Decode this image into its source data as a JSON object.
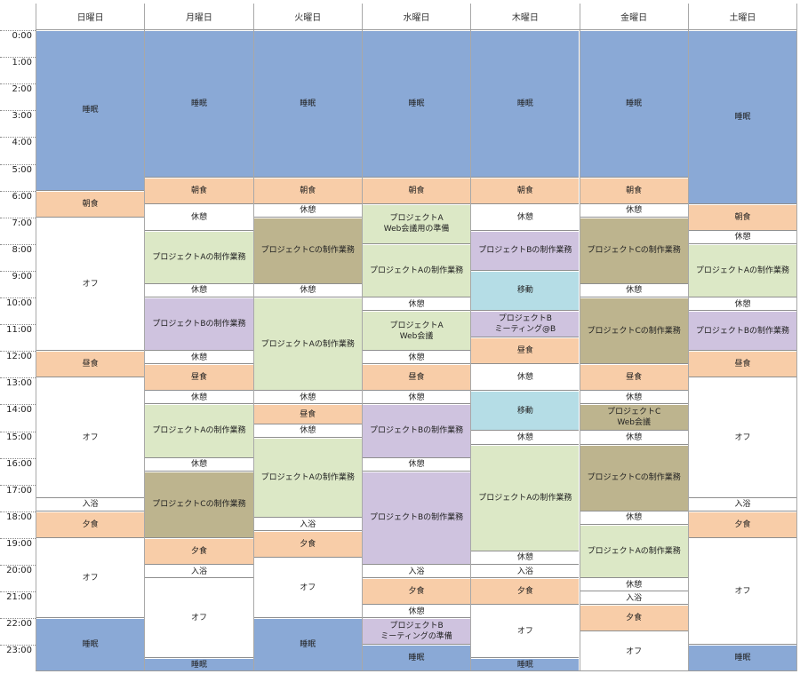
{
  "colors": {
    "sleep": "#8aa9d6",
    "meal": "#f8cda8",
    "free": "#ffffff",
    "project_a": "#dce8c6",
    "project_b": "#cfc3df",
    "project_c": "#bdb48e",
    "travel": "#b5dde6"
  },
  "hours": [
    "0:00",
    "1:00",
    "2:00",
    "3:00",
    "4:00",
    "5:00",
    "6:00",
    "7:00",
    "8:00",
    "9:00",
    "10:00",
    "11:00",
    "12:00",
    "13:00",
    "14:00",
    "15:00",
    "16:00",
    "17:00",
    "18:00",
    "19:00",
    "20:00",
    "21:00",
    "22:00",
    "23:00"
  ],
  "days": [
    {
      "name": "日曜日",
      "blocks": [
        {
          "start": 0,
          "end": 6,
          "label": "睡眠",
          "kind": "sleep"
        },
        {
          "start": 6,
          "end": 7,
          "label": "朝食",
          "kind": "meal"
        },
        {
          "start": 7,
          "end": 12,
          "label": "オフ",
          "kind": "free"
        },
        {
          "start": 12,
          "end": 13,
          "label": "昼食",
          "kind": "meal"
        },
        {
          "start": 13,
          "end": 17.5,
          "label": "オフ",
          "kind": "free"
        },
        {
          "start": 17.5,
          "end": 18,
          "label": "入浴",
          "kind": "free"
        },
        {
          "start": 18,
          "end": 19,
          "label": "夕食",
          "kind": "meal"
        },
        {
          "start": 19,
          "end": 22,
          "label": "オフ",
          "kind": "free"
        },
        {
          "start": 22,
          "end": 24,
          "label": "睡眠",
          "kind": "sleep"
        }
      ]
    },
    {
      "name": "月曜日",
      "blocks": [
        {
          "start": 0,
          "end": 5.5,
          "label": "睡眠",
          "kind": "sleep"
        },
        {
          "start": 5.5,
          "end": 6.5,
          "label": "朝食",
          "kind": "meal"
        },
        {
          "start": 6.5,
          "end": 7.5,
          "label": "休憩",
          "kind": "free"
        },
        {
          "start": 7.5,
          "end": 9.5,
          "label": "プロジェクトAの制作業務",
          "kind": "project_a"
        },
        {
          "start": 9.5,
          "end": 10,
          "label": "休憩",
          "kind": "free"
        },
        {
          "start": 10,
          "end": 12,
          "label": "プロジェクトBの制作業務",
          "kind": "project_b"
        },
        {
          "start": 12,
          "end": 12.5,
          "label": "休憩",
          "kind": "free"
        },
        {
          "start": 12.5,
          "end": 13.5,
          "label": "昼食",
          "kind": "meal"
        },
        {
          "start": 13.5,
          "end": 14,
          "label": "休憩",
          "kind": "free"
        },
        {
          "start": 14,
          "end": 16,
          "label": "プロジェクトAの制作業務",
          "kind": "project_a"
        },
        {
          "start": 16,
          "end": 16.5,
          "label": "休憩",
          "kind": "free"
        },
        {
          "start": 16.5,
          "end": 19,
          "label": "プロジェクトCの制作業務",
          "kind": "project_c"
        },
        {
          "start": 19,
          "end": 20,
          "label": "夕食",
          "kind": "meal"
        },
        {
          "start": 20,
          "end": 20.5,
          "label": "入浴",
          "kind": "free"
        },
        {
          "start": 20.5,
          "end": 23.5,
          "label": "オフ",
          "kind": "free"
        },
        {
          "start": 23.5,
          "end": 24,
          "label": "睡眠",
          "kind": "sleep"
        }
      ]
    },
    {
      "name": "火曜日",
      "blocks": [
        {
          "start": 0,
          "end": 5.5,
          "label": "睡眠",
          "kind": "sleep"
        },
        {
          "start": 5.5,
          "end": 6.5,
          "label": "朝食",
          "kind": "meal"
        },
        {
          "start": 6.5,
          "end": 7,
          "label": "休憩",
          "kind": "free"
        },
        {
          "start": 7,
          "end": 9.5,
          "label": "プロジェクトCの制作業務",
          "kind": "project_c"
        },
        {
          "start": 9.5,
          "end": 10,
          "label": "休憩",
          "kind": "free"
        },
        {
          "start": 10,
          "end": 13.5,
          "label": "プロジェクトAの制作業務",
          "kind": "project_a"
        },
        {
          "start": 13.5,
          "end": 14,
          "label": "休憩",
          "kind": "free"
        },
        {
          "start": 14,
          "end": 14.75,
          "label": "昼食",
          "kind": "meal"
        },
        {
          "start": 14.75,
          "end": 15.25,
          "label": "休憩",
          "kind": "free"
        },
        {
          "start": 15.25,
          "end": 18.25,
          "label": "プロジェクトAの制作業務",
          "kind": "project_a"
        },
        {
          "start": 18.25,
          "end": 18.75,
          "label": "入浴",
          "kind": "free"
        },
        {
          "start": 18.75,
          "end": 19.75,
          "label": "夕食",
          "kind": "meal"
        },
        {
          "start": 19.75,
          "end": 22,
          "label": "オフ",
          "kind": "free"
        },
        {
          "start": 22,
          "end": 24,
          "label": "睡眠",
          "kind": "sleep"
        }
      ]
    },
    {
      "name": "水曜日",
      "blocks": [
        {
          "start": 0,
          "end": 5.5,
          "label": "睡眠",
          "kind": "sleep"
        },
        {
          "start": 5.5,
          "end": 6.5,
          "label": "朝食",
          "kind": "meal"
        },
        {
          "start": 6.5,
          "end": 8,
          "label": "プロジェクトA\nWeb会議用の準備",
          "kind": "project_a"
        },
        {
          "start": 8,
          "end": 10,
          "label": "プロジェクトAの制作業務",
          "kind": "project_a"
        },
        {
          "start": 10,
          "end": 10.5,
          "label": "休憩",
          "kind": "free"
        },
        {
          "start": 10.5,
          "end": 12,
          "label": "プロジェクトA\nWeb会議",
          "kind": "project_a"
        },
        {
          "start": 12,
          "end": 12.5,
          "label": "休憩",
          "kind": "free"
        },
        {
          "start": 12.5,
          "end": 13.5,
          "label": "昼食",
          "kind": "meal"
        },
        {
          "start": 13.5,
          "end": 14,
          "label": "休憩",
          "kind": "free"
        },
        {
          "start": 14,
          "end": 16,
          "label": "プロジェクトBの制作業務",
          "kind": "project_b"
        },
        {
          "start": 16,
          "end": 16.5,
          "label": "休憩",
          "kind": "free"
        },
        {
          "start": 16.5,
          "end": 20,
          "label": "プロジェクトBの制作業務",
          "kind": "project_b"
        },
        {
          "start": 20,
          "end": 20.5,
          "label": "入浴",
          "kind": "free"
        },
        {
          "start": 20.5,
          "end": 21.5,
          "label": "夕食",
          "kind": "meal"
        },
        {
          "start": 21.5,
          "end": 22,
          "label": "休憩",
          "kind": "free"
        },
        {
          "start": 22,
          "end": 23,
          "label": "プロジェクトB\nミーティングの準備",
          "kind": "project_b"
        },
        {
          "start": 23,
          "end": 24,
          "label": "睡眠",
          "kind": "sleep"
        }
      ]
    },
    {
      "name": "木曜日",
      "blocks": [
        {
          "start": 0,
          "end": 5.5,
          "label": "睡眠",
          "kind": "sleep"
        },
        {
          "start": 5.5,
          "end": 6.5,
          "label": "朝食",
          "kind": "meal"
        },
        {
          "start": 6.5,
          "end": 7.5,
          "label": "休憩",
          "kind": "free"
        },
        {
          "start": 7.5,
          "end": 9,
          "label": "プロジェクトBの制作業務",
          "kind": "project_b"
        },
        {
          "start": 9,
          "end": 10.5,
          "label": "移動",
          "kind": "travel"
        },
        {
          "start": 10.5,
          "end": 11.5,
          "label": "プロジェクトB\nミーティング@B",
          "kind": "project_b"
        },
        {
          "start": 11.5,
          "end": 12.5,
          "label": "昼食",
          "kind": "meal"
        },
        {
          "start": 12.5,
          "end": 13.5,
          "label": "休憩",
          "kind": "free"
        },
        {
          "start": 13.5,
          "end": 15,
          "label": "移動",
          "kind": "travel"
        },
        {
          "start": 15,
          "end": 15.5,
          "label": "休憩",
          "kind": "free"
        },
        {
          "start": 15.5,
          "end": 19.5,
          "label": "プロジェクトAの制作業務",
          "kind": "project_a"
        },
        {
          "start": 19.5,
          "end": 20,
          "label": "休憩",
          "kind": "free"
        },
        {
          "start": 20,
          "end": 20.5,
          "label": "入浴",
          "kind": "free"
        },
        {
          "start": 20.5,
          "end": 21.5,
          "label": "夕食",
          "kind": "meal"
        },
        {
          "start": 21.5,
          "end": 23.5,
          "label": "オフ",
          "kind": "free"
        },
        {
          "start": 23.5,
          "end": 24,
          "label": "睡眠",
          "kind": "sleep"
        }
      ]
    },
    {
      "name": "金曜日",
      "blocks": [
        {
          "start": 0,
          "end": 5.5,
          "label": "睡眠",
          "kind": "sleep"
        },
        {
          "start": 5.5,
          "end": 6.5,
          "label": "朝食",
          "kind": "meal"
        },
        {
          "start": 6.5,
          "end": 7,
          "label": "休憩",
          "kind": "free"
        },
        {
          "start": 7,
          "end": 9.5,
          "label": "プロジェクトCの制作業務",
          "kind": "project_c"
        },
        {
          "start": 9.5,
          "end": 10,
          "label": "休憩",
          "kind": "free"
        },
        {
          "start": 10,
          "end": 12.5,
          "label": "プロジェクトCの制作業務",
          "kind": "project_c"
        },
        {
          "start": 12.5,
          "end": 13.5,
          "label": "昼食",
          "kind": "meal"
        },
        {
          "start": 13.5,
          "end": 14,
          "label": "休憩",
          "kind": "free"
        },
        {
          "start": 14,
          "end": 15,
          "label": "プロジェクトC\nWeb会議",
          "kind": "project_c"
        },
        {
          "start": 15,
          "end": 15.5,
          "label": "休憩",
          "kind": "free"
        },
        {
          "start": 15.5,
          "end": 18,
          "label": "プロジェクトCの制作業務",
          "kind": "project_c"
        },
        {
          "start": 18,
          "end": 18.5,
          "label": "休憩",
          "kind": "free"
        },
        {
          "start": 18.5,
          "end": 20.5,
          "label": "プロジェクトAの制作業務",
          "kind": "project_a"
        },
        {
          "start": 20.5,
          "end": 21,
          "label": "休憩",
          "kind": "free"
        },
        {
          "start": 21,
          "end": 21.5,
          "label": "入浴",
          "kind": "free"
        },
        {
          "start": 21.5,
          "end": 22.5,
          "label": "夕食",
          "kind": "meal"
        },
        {
          "start": 22.5,
          "end": 24,
          "label": "オフ",
          "kind": "free"
        }
      ]
    },
    {
      "name": "土曜日",
      "blocks": [
        {
          "start": 0,
          "end": 6.5,
          "label": "睡眠",
          "kind": "sleep"
        },
        {
          "start": 6.5,
          "end": 7.5,
          "label": "朝食",
          "kind": "meal"
        },
        {
          "start": 7.5,
          "end": 8,
          "label": "休憩",
          "kind": "free"
        },
        {
          "start": 8,
          "end": 10,
          "label": "プロジェクトAの制作業務",
          "kind": "project_a"
        },
        {
          "start": 10,
          "end": 10.5,
          "label": "休憩",
          "kind": "free"
        },
        {
          "start": 10.5,
          "end": 12,
          "label": "プロジェクトBの制作業務",
          "kind": "project_b"
        },
        {
          "start": 12,
          "end": 13,
          "label": "昼食",
          "kind": "meal"
        },
        {
          "start": 13,
          "end": 17.5,
          "label": "オフ",
          "kind": "free"
        },
        {
          "start": 17.5,
          "end": 18,
          "label": "入浴",
          "kind": "free"
        },
        {
          "start": 18,
          "end": 19,
          "label": "夕食",
          "kind": "meal"
        },
        {
          "start": 19,
          "end": 23,
          "label": "オフ",
          "kind": "free"
        },
        {
          "start": 23,
          "end": 24,
          "label": "睡眠",
          "kind": "sleep"
        }
      ]
    }
  ]
}
